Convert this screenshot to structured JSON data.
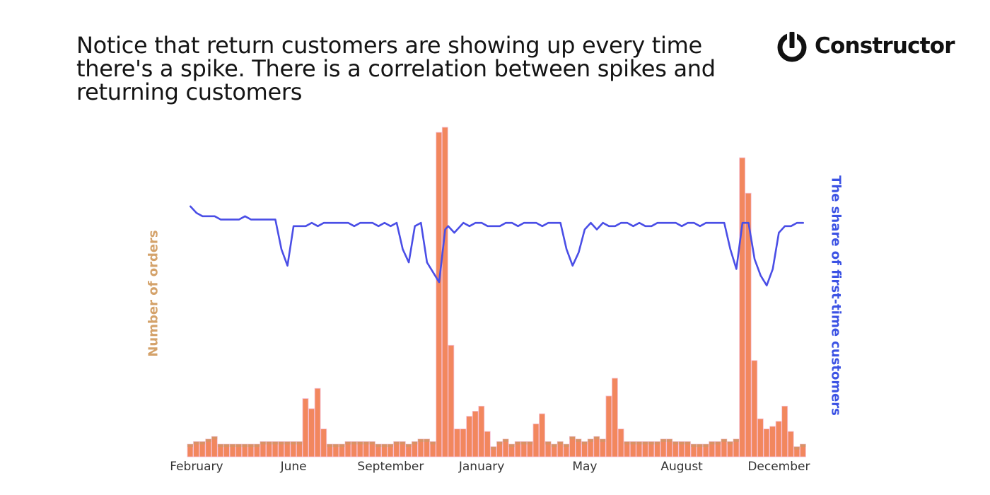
{
  "headline": "Notice that return customers are showing up every time there's a spike. There is a correlation between spikes and returning customers",
  "brand": {
    "name": "Constructor",
    "icon": "power-icon"
  },
  "colors": {
    "bars": "#f2875e",
    "bar_stroke": "#f6c0d6",
    "bar_top": "#c49a6c",
    "line": "#4a4ee6",
    "left_axis_title": "#d4a26a",
    "right_axis_title": "#3b52e4"
  },
  "chart_data": {
    "type": "bar",
    "left_axis_title": "Number of orders",
    "right_axis_title": "The share of first-time customers",
    "x_tick_labels": [
      "February",
      "June",
      "September",
      "January",
      "May",
      "August",
      "December"
    ],
    "x_tick_index": [
      1,
      17,
      33,
      48,
      65,
      81,
      97
    ],
    "grid": false,
    "legend": "none",
    "series": [
      {
        "type": "bar",
        "axis": "left",
        "values": [
          5,
          6,
          6,
          7,
          8,
          5,
          5,
          5,
          5,
          5,
          5,
          5,
          6,
          6,
          6,
          6,
          6,
          6,
          6,
          23,
          19,
          27,
          11,
          5,
          5,
          5,
          6,
          6,
          6,
          6,
          6,
          5,
          5,
          5,
          6,
          6,
          5,
          6,
          7,
          7,
          6,
          128,
          130,
          44,
          11,
          11,
          16,
          18,
          20,
          10,
          4,
          6,
          7,
          5,
          6,
          6,
          6,
          13,
          17,
          6,
          5,
          6,
          5,
          8,
          7,
          6,
          7,
          8,
          7,
          24,
          31,
          11,
          6,
          6,
          6,
          6,
          6,
          6,
          7,
          7,
          6,
          6,
          6,
          5,
          5,
          5,
          6,
          6,
          7,
          6,
          7,
          118,
          104,
          38,
          15,
          11,
          12,
          14,
          20,
          10,
          4,
          5
        ],
        "ylim": [
          0,
          130
        ]
      },
      {
        "type": "line",
        "axis": "right",
        "ylim": [
          0,
          100
        ],
        "x": [
          0,
          1,
          2,
          3,
          4,
          5,
          6,
          7,
          8,
          9,
          10,
          11,
          12,
          13,
          14,
          15,
          16,
          17,
          18,
          19,
          20,
          21,
          22,
          23,
          24,
          25,
          26,
          27,
          28,
          29,
          30,
          31,
          32,
          33,
          34,
          35,
          36,
          37,
          38,
          39,
          40,
          41,
          42,
          42.5,
          43.5,
          45,
          46,
          47,
          48,
          49,
          50,
          51,
          52,
          53,
          54,
          55,
          56,
          57,
          58,
          59,
          60,
          61,
          62,
          63,
          64,
          65,
          66,
          67,
          68,
          69,
          70,
          71,
          72,
          73,
          74,
          75,
          76,
          77,
          78,
          79,
          80,
          81,
          82,
          83,
          84,
          85,
          86,
          87,
          88,
          89,
          90,
          91,
          92,
          93,
          94,
          95,
          96,
          97,
          98,
          99,
          100,
          101
        ],
        "values": [
          76,
          74,
          73,
          73,
          73,
          72,
          72,
          72,
          72,
          73,
          72,
          72,
          72,
          72,
          72,
          63,
          58,
          70,
          70,
          70,
          71,
          70,
          71,
          71,
          71,
          71,
          71,
          70,
          71,
          71,
          71,
          70,
          71,
          70,
          71,
          63,
          59,
          70,
          71,
          59,
          56,
          53,
          69,
          70,
          68,
          71,
          70,
          71,
          71,
          70,
          70,
          70,
          71,
          71,
          70,
          71,
          71,
          71,
          70,
          71,
          71,
          71,
          63,
          58,
          62,
          69,
          71,
          69,
          71,
          70,
          70,
          71,
          71,
          70,
          71,
          70,
          70,
          71,
          71,
          71,
          71,
          70,
          71,
          71,
          70,
          71,
          71,
          71,
          71,
          63,
          57,
          71,
          71,
          60,
          55,
          52,
          57,
          68,
          70,
          70,
          71,
          71
        ]
      }
    ]
  }
}
